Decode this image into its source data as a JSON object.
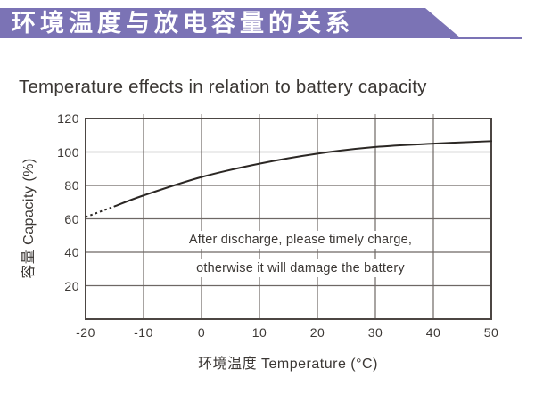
{
  "header": {
    "banner_title": "环境温度与放电容量的关系",
    "banner_color": "#7b73b5"
  },
  "main": {
    "title": "Temperature effects in relation to battery capacity"
  },
  "chart_data": {
    "type": "line",
    "title": "Temperature effects in relation to battery capacity",
    "xlabel": "环境温度 Temperature (°C)",
    "ylabel": "容量 Capacity (%)",
    "x": [
      -20,
      -10,
      0,
      10,
      20,
      30,
      40,
      50
    ],
    "values": [
      61,
      74,
      85,
      93,
      99,
      103,
      105,
      106.5
    ],
    "dashed_segment": {
      "x_from": -20,
      "x_to": -15
    },
    "xlim": [
      -20,
      50
    ],
    "ylim": [
      0,
      120
    ],
    "x_ticks": [
      -20,
      -10,
      0,
      10,
      20,
      30,
      40,
      50
    ],
    "y_ticks": [
      20,
      40,
      60,
      80,
      100,
      120
    ],
    "grid": true,
    "legend": "none",
    "annotation": [
      "After discharge, please timely charge,",
      "otherwise it will damage the battery"
    ],
    "colors": {
      "grid": "#6e6764",
      "border": "#4c4643",
      "curve": "#2b2724",
      "top_tick": "#9a938f",
      "text": "#3b3734"
    }
  }
}
